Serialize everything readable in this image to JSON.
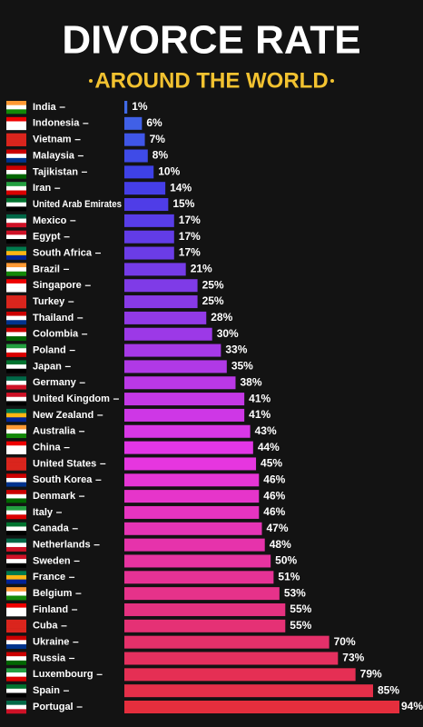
{
  "chart_data": {
    "type": "bar",
    "orientation": "horizontal",
    "title": "DIVORCE RATE",
    "subtitle": "AROUND THE WORLD",
    "categories": [
      "India",
      "Indonesia",
      "Vietnam",
      "Malaysia",
      "Tajikistan",
      "Iran",
      "United Arab Emirates",
      "Mexico",
      "Egypt",
      "South Africa",
      "Brazil",
      "Singapore",
      "Turkey",
      "Thailand",
      "Colombia",
      "Poland",
      "Japan",
      "Germany",
      "United Kingdom",
      "New Zealand",
      "Australia",
      "China",
      "United States",
      "South Korea",
      "Denmark",
      "Italy",
      "Canada",
      "Netherlands",
      "Sweden",
      "France",
      "Belgium",
      "Finland",
      "Cuba",
      "Ukraine",
      "Russia",
      "Luxembourg",
      "Spain",
      "Portugal"
    ],
    "values": [
      1,
      6,
      7,
      8,
      10,
      14,
      15,
      17,
      17,
      17,
      21,
      25,
      25,
      28,
      30,
      33,
      35,
      38,
      41,
      41,
      43,
      44,
      45,
      46,
      46,
      46,
      47,
      48,
      50,
      51,
      53,
      55,
      55,
      70,
      73,
      79,
      85,
      94
    ],
    "value_labels": [
      "1%",
      "6%",
      "7%",
      "8%",
      "10%",
      "14%",
      "15%",
      "17%",
      "17%",
      "17%",
      "21%",
      "25%",
      "25%",
      "28%",
      "30%",
      "33%",
      "35%",
      "38%",
      "41%",
      "41%",
      "43%",
      "44%",
      "45%",
      "46%",
      "46%",
      "46%",
      "47%",
      "48%",
      "50%",
      "51%",
      "53%",
      "55%",
      "55%",
      "70%",
      "73%",
      "79%",
      "85%",
      "94%"
    ]
  }
}
